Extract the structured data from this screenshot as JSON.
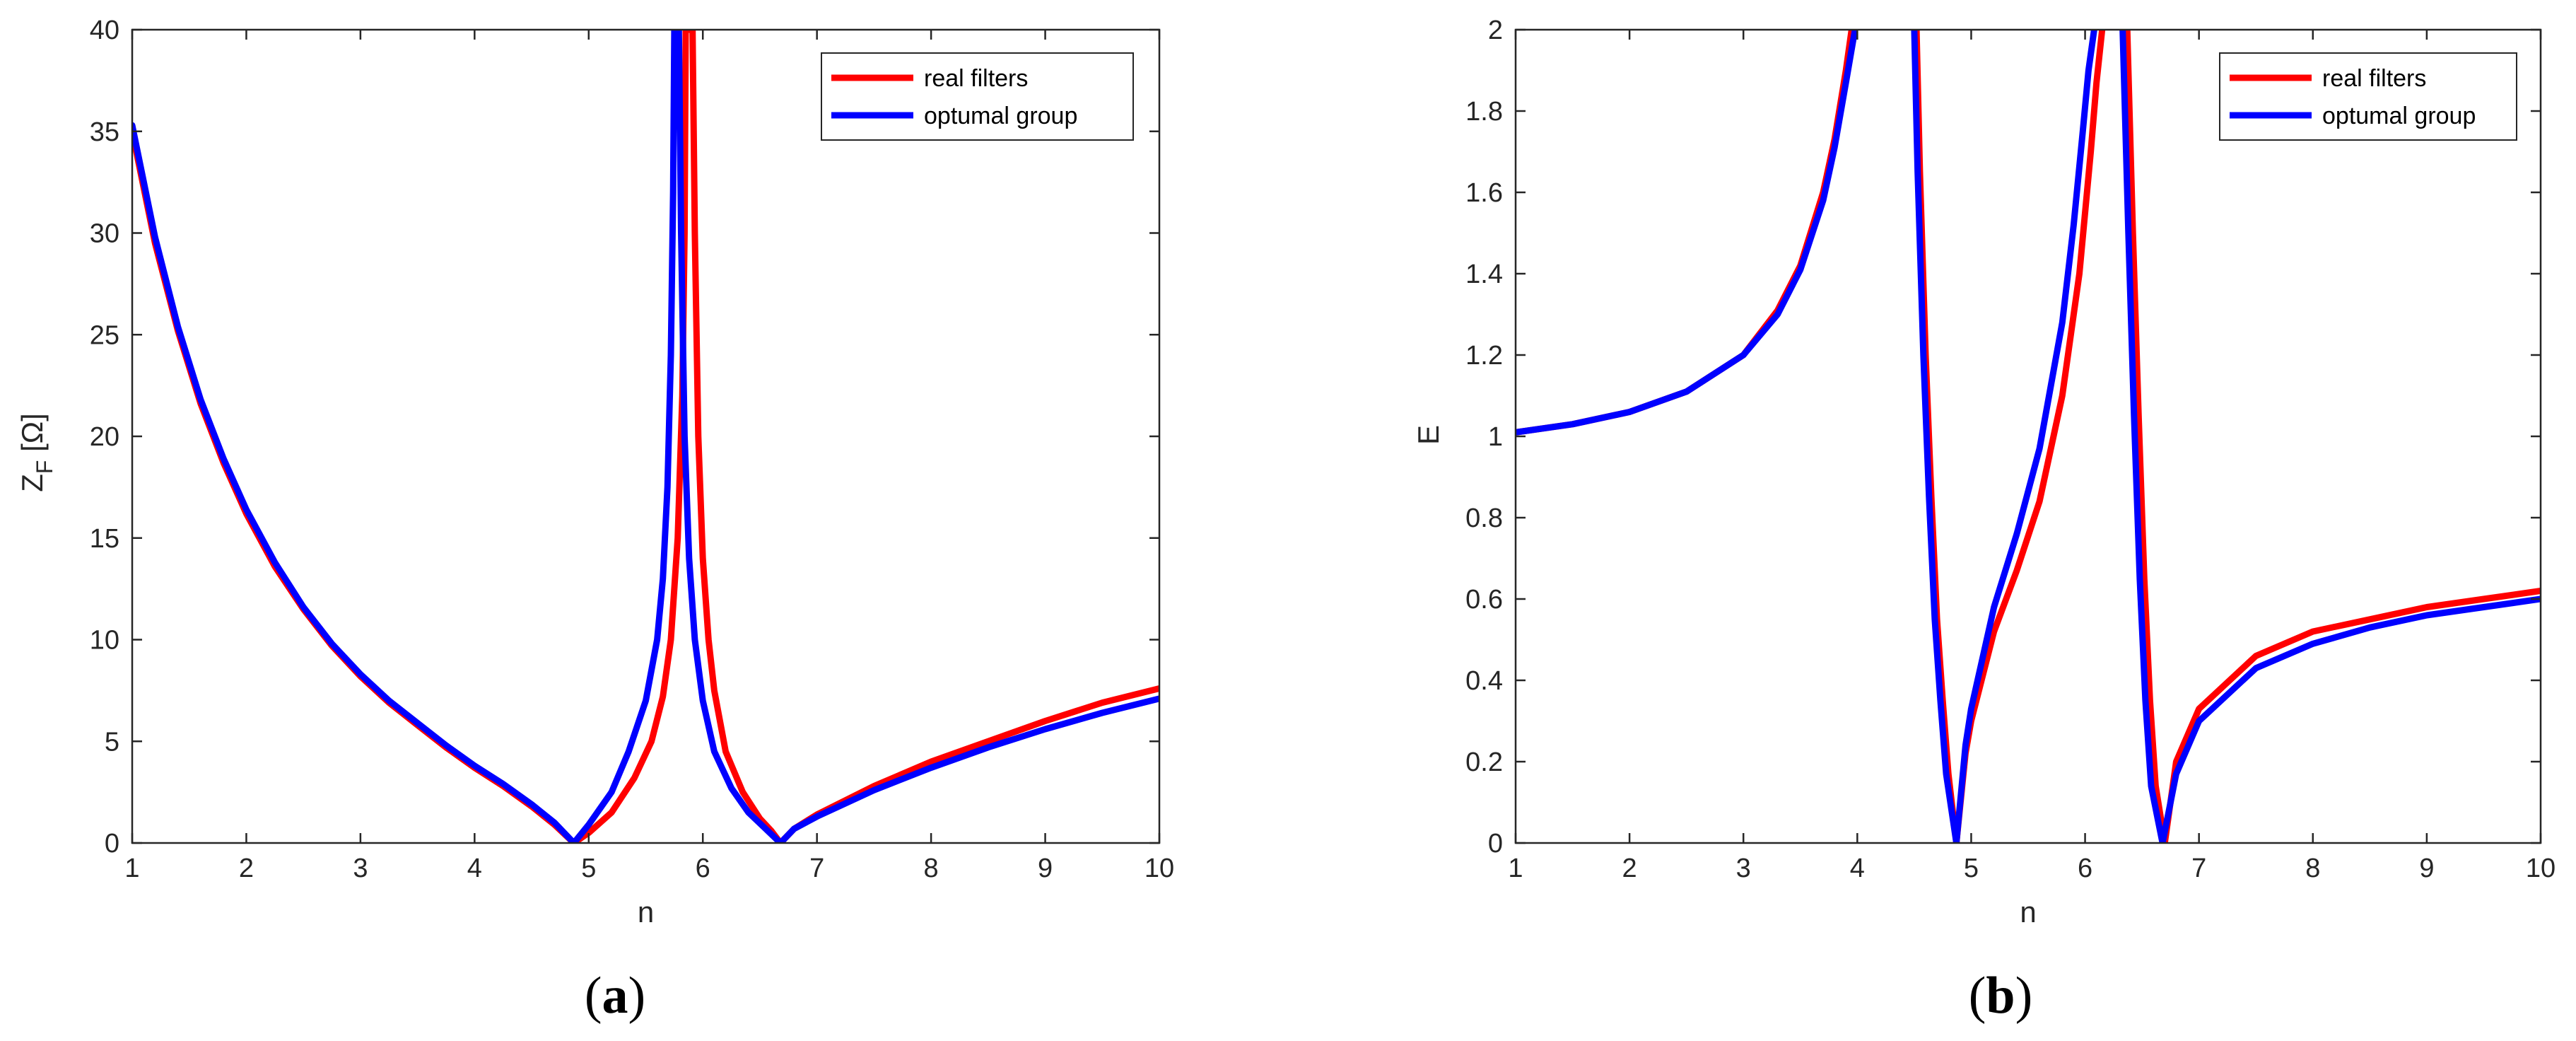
{
  "chart_data": [
    {
      "type": "line",
      "panel_label": {
        "open": "(",
        "letter": "a",
        "close": ")"
      },
      "xlabel": "n",
      "ylabel_main": "Z",
      "ylabel_sub": "F",
      "ylabel_unit": " [Ω]",
      "xlim": [
        1,
        10
      ],
      "ylim": [
        0,
        40
      ],
      "xticks": [
        1,
        2,
        3,
        4,
        5,
        6,
        7,
        8,
        9,
        10
      ],
      "yticks": [
        0,
        5,
        10,
        15,
        20,
        25,
        30,
        35,
        40
      ],
      "grid": false,
      "legend_position": "top-right",
      "colors": {
        "real": "#ff0000",
        "optimal": "#0000ff"
      },
      "series": [
        {
          "name": "real filters",
          "color": "#ff0000",
          "x": [
            1.0,
            1.2,
            1.4,
            1.6,
            1.8,
            2.0,
            2.25,
            2.5,
            2.75,
            3.0,
            3.25,
            3.5,
            3.75,
            4.0,
            4.25,
            4.5,
            4.7,
            4.87,
            5.0,
            5.2,
            5.4,
            5.55,
            5.65,
            5.72,
            5.78,
            5.82,
            5.84,
            5.85,
            5.91,
            5.93,
            5.96,
            6.0,
            6.05,
            6.1,
            6.2,
            6.35,
            6.5,
            6.6,
            6.68,
            6.8,
            7.0,
            7.5,
            8.0,
            8.5,
            9.0,
            9.5,
            10.0
          ],
          "y": [
            35.0,
            29.5,
            25.2,
            21.6,
            18.7,
            16.2,
            13.6,
            11.5,
            9.7,
            8.2,
            6.9,
            5.8,
            4.7,
            3.7,
            2.8,
            1.8,
            0.9,
            0.0,
            0.5,
            1.5,
            3.2,
            5.0,
            7.2,
            10.0,
            15.0,
            22.0,
            30.0,
            40.0,
            40.0,
            30.0,
            20.0,
            14.0,
            10.0,
            7.5,
            4.5,
            2.5,
            1.2,
            0.6,
            0.0,
            0.7,
            1.4,
            2.8,
            4.0,
            5.0,
            6.0,
            6.9,
            7.6
          ]
        },
        {
          "name": "optumal group",
          "color": "#0000ff",
          "x": [
            1.0,
            1.2,
            1.4,
            1.6,
            1.8,
            2.0,
            2.25,
            2.5,
            2.75,
            3.0,
            3.25,
            3.5,
            3.75,
            4.0,
            4.25,
            4.5,
            4.7,
            4.87,
            5.0,
            5.2,
            5.35,
            5.5,
            5.6,
            5.65,
            5.69,
            5.72,
            5.74,
            5.75,
            5.79,
            5.81,
            5.84,
            5.88,
            5.93,
            6.0,
            6.1,
            6.25,
            6.4,
            6.55,
            6.68,
            6.8,
            7.0,
            7.5,
            8.0,
            8.5,
            9.0,
            9.5,
            10.0
          ],
          "y": [
            35.3,
            29.8,
            25.4,
            21.8,
            18.9,
            16.4,
            13.8,
            11.6,
            9.8,
            8.3,
            7.0,
            5.9,
            4.8,
            3.8,
            2.9,
            1.9,
            1.0,
            0.0,
            0.9,
            2.5,
            4.5,
            7.0,
            10.0,
            13.0,
            17.5,
            24.0,
            32.0,
            40.0,
            40.0,
            30.0,
            20.0,
            14.0,
            10.0,
            7.0,
            4.5,
            2.7,
            1.5,
            0.7,
            0.0,
            0.7,
            1.3,
            2.6,
            3.7,
            4.7,
            5.6,
            6.4,
            7.1
          ]
        }
      ]
    },
    {
      "type": "line",
      "panel_label": {
        "open": "(",
        "letter": "b",
        "close": ")"
      },
      "xlabel": "n",
      "ylabel_main": "E",
      "ylabel_sub": "",
      "ylabel_unit": "",
      "xlim": [
        1,
        10
      ],
      "ylim": [
        0,
        2
      ],
      "xticks": [
        1,
        2,
        3,
        4,
        5,
        6,
        7,
        8,
        9,
        10
      ],
      "yticks": [
        0,
        0.2,
        0.4,
        0.6,
        0.8,
        1,
        1.2,
        1.4,
        1.6,
        1.8,
        2
      ],
      "grid": false,
      "legend_position": "top-right",
      "colors": {
        "real": "#ff0000",
        "optimal": "#0000ff"
      },
      "series": [
        {
          "name": "real filters",
          "color": "#ff0000",
          "x": [
            1.0,
            1.5,
            2.0,
            2.5,
            3.0,
            3.3,
            3.5,
            3.7,
            3.8,
            3.9,
            3.95,
            null,
            4.52,
            4.55,
            4.6,
            4.65,
            4.7,
            4.75,
            4.8,
            4.87,
            4.95,
            5.0,
            5.2,
            5.4,
            5.6,
            5.8,
            5.95,
            6.05,
            6.1,
            6.15,
            null,
            6.37,
            6.42,
            6.47,
            6.52,
            6.57,
            6.62,
            6.7,
            6.8,
            7.0,
            7.5,
            8.0,
            8.5,
            9.0,
            9.5,
            10.0
          ],
          "y": [
            1.01,
            1.03,
            1.06,
            1.11,
            1.2,
            1.31,
            1.42,
            1.6,
            1.73,
            1.9,
            2.0,
            null,
            2.0,
            1.65,
            1.2,
            0.85,
            0.55,
            0.35,
            0.17,
            0.0,
            0.22,
            0.3,
            0.52,
            0.67,
            0.84,
            1.1,
            1.4,
            1.7,
            1.87,
            2.0,
            null,
            2.0,
            1.5,
            1.05,
            0.65,
            0.35,
            0.14,
            0.0,
            0.2,
            0.33,
            0.46,
            0.52,
            0.55,
            0.58,
            0.6,
            0.62
          ]
        },
        {
          "name": "optumal group",
          "color": "#0000ff",
          "x": [
            1.0,
            1.5,
            2.0,
            2.5,
            3.0,
            3.3,
            3.5,
            3.7,
            3.8,
            3.9,
            3.98,
            null,
            4.5,
            4.53,
            4.58,
            4.63,
            4.68,
            4.73,
            4.78,
            4.87,
            4.95,
            5.0,
            5.2,
            5.4,
            5.6,
            5.8,
            5.9,
            5.98,
            6.03,
            6.08,
            null,
            6.33,
            6.38,
            6.43,
            6.48,
            6.53,
            6.58,
            6.68,
            6.8,
            7.0,
            7.5,
            8.0,
            8.5,
            9.0,
            9.5,
            10.0
          ],
          "y": [
            1.01,
            1.03,
            1.06,
            1.11,
            1.2,
            1.3,
            1.41,
            1.58,
            1.71,
            1.87,
            2.0,
            null,
            2.0,
            1.65,
            1.2,
            0.85,
            0.55,
            0.35,
            0.17,
            0.0,
            0.24,
            0.33,
            0.58,
            0.76,
            0.97,
            1.28,
            1.52,
            1.75,
            1.9,
            2.0,
            null,
            2.0,
            1.5,
            1.05,
            0.65,
            0.35,
            0.14,
            0.0,
            0.17,
            0.3,
            0.43,
            0.49,
            0.53,
            0.56,
            0.58,
            0.6
          ]
        }
      ]
    }
  ]
}
